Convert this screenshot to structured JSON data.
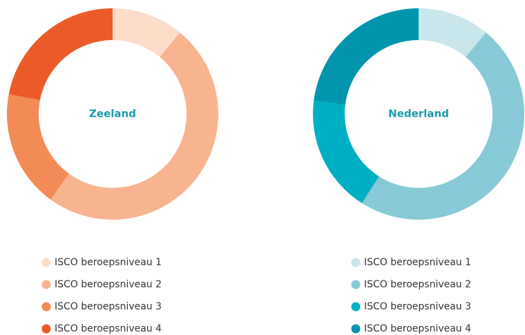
{
  "chart_data": [
    {
      "type": "pie",
      "title": "Zeeland",
      "categories": [
        "ISCO beroepsniveau 1",
        "ISCO beroepsniveau 2",
        "ISCO beroepsniveau 3",
        "ISCO beroepsniveau 4"
      ],
      "values": [
        11,
        49,
        18,
        22
      ],
      "colors": [
        "#fddcca",
        "#f8b48f",
        "#f28b56",
        "#ec5b27"
      ]
    },
    {
      "type": "pie",
      "title": "Nederland",
      "categories": [
        "ISCO beroepsniveau 1",
        "ISCO beroepsniveau 2",
        "ISCO beroepsniveau 3",
        "ISCO beroepsniveau 4"
      ],
      "values": [
        11,
        48,
        18,
        23
      ],
      "colors": [
        "#c8e6ec",
        "#87c9d6",
        "#00aec4",
        "#0095ad"
      ]
    }
  ]
}
